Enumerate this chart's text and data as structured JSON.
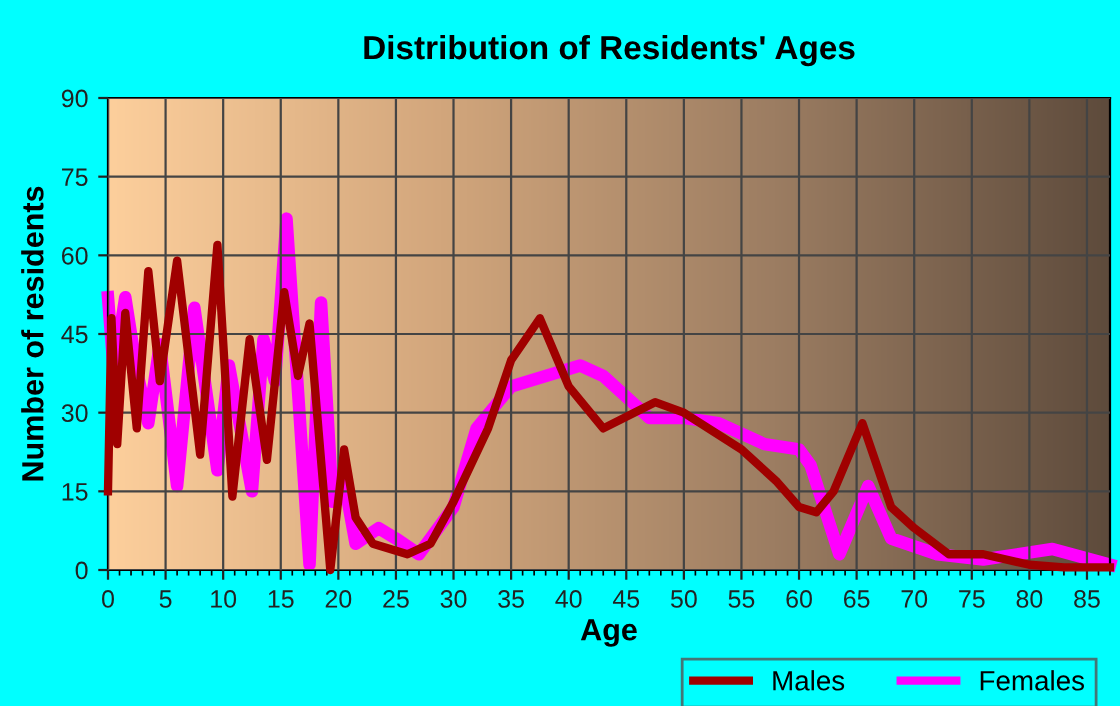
{
  "chart_data": {
    "type": "line",
    "title": "Distribution of Residents' Ages",
    "xlabel": "Age",
    "ylabel": "Number of residents",
    "xlim": [
      0,
      87
    ],
    "xticks": [
      0,
      5,
      10,
      15,
      20,
      25,
      30,
      35,
      40,
      45,
      50,
      55,
      60,
      65,
      70,
      75,
      80,
      85
    ],
    "ylim": [
      0,
      90
    ],
    "yticks": [
      0,
      15,
      30,
      45,
      60,
      75,
      90
    ],
    "grid": true,
    "legend": "bottom",
    "marker": "none",
    "line_style": "solid",
    "series": [
      {
        "name": "Males",
        "color": "#a00000",
        "x": [
          0,
          0.3,
          0.8,
          1.5,
          2.5,
          3.5,
          4.5,
          6,
          8,
          9.5,
          10.8,
          12.3,
          13.8,
          15.3,
          16.5,
          17.5,
          19.3,
          20.5,
          21.5,
          23,
          26,
          28,
          30,
          33,
          35,
          37.5,
          40,
          43,
          47.5,
          50,
          55,
          58,
          60,
          61.5,
          63,
          65.5,
          68,
          70,
          73,
          76,
          80,
          83,
          87
        ],
        "values": [
          15,
          48,
          24,
          49,
          27,
          57,
          36,
          59,
          22,
          62,
          14,
          44,
          21,
          53,
          37,
          47,
          0,
          23,
          10,
          5,
          3,
          5,
          13,
          27,
          40,
          48,
          35,
          27,
          32,
          30,
          23,
          17,
          12,
          11,
          15,
          28,
          12,
          8,
          3,
          3,
          1,
          0.5,
          0.5
        ]
      },
      {
        "name": "Females",
        "color": "#ff00ff",
        "x": [
          0,
          0.5,
          1.5,
          2.5,
          3.5,
          4.5,
          6,
          7.5,
          9.5,
          10.5,
          12.5,
          13.5,
          14.5,
          15.5,
          17.5,
          18.5,
          19.5,
          20.5,
          21.5,
          23.5,
          25,
          27,
          30,
          32,
          35,
          38,
          41,
          43,
          47,
          50,
          53,
          57,
          60,
          61,
          63.5,
          66,
          68,
          72,
          76,
          82,
          87
        ],
        "values": [
          52,
          38,
          52,
          38,
          28,
          43,
          16,
          50,
          19,
          39,
          15,
          44,
          36,
          67,
          1,
          51,
          13,
          17,
          5,
          8,
          6,
          3,
          12,
          27,
          35,
          37,
          39,
          37,
          29,
          29,
          28,
          24,
          23,
          20,
          3,
          16,
          6,
          3,
          2,
          4,
          1
        ]
      }
    ]
  }
}
